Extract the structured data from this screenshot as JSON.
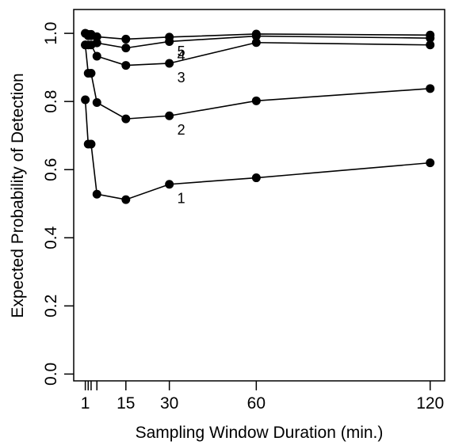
{
  "chart_data": {
    "type": "line",
    "title": "",
    "xlabel": "Sampling Window Duration (min.)",
    "ylabel": "Expected Probability of Detection",
    "xlim": [
      -3,
      125
    ],
    "ylim": [
      -0.02,
      1.07
    ],
    "x": [
      1,
      2,
      3,
      5,
      15,
      30,
      60,
      120
    ],
    "x_ticks": [
      1,
      2,
      3,
      5,
      15,
      30,
      60,
      120
    ],
    "x_tick_labels": [
      "1",
      "",
      "",
      "",
      "15",
      "30",
      "60",
      "120"
    ],
    "y_ticks": [
      0.0,
      0.2,
      0.4,
      0.6,
      0.8,
      1.0
    ],
    "y_tick_labels": [
      "0.0",
      "0.2",
      "0.4",
      "0.6",
      "0.8",
      "1.0"
    ],
    "grid": false,
    "legend": "none",
    "series": [
      {
        "name": "1",
        "values": [
          0.805,
          0.675,
          0.675,
          0.528,
          0.512,
          0.557,
          0.576,
          0.62
        ]
      },
      {
        "name": "2",
        "values": [
          0.966,
          0.883,
          0.883,
          0.797,
          0.749,
          0.758,
          0.802,
          0.838
        ]
      },
      {
        "name": "3",
        "values": [
          0.966,
          0.966,
          0.966,
          0.933,
          0.906,
          0.912,
          0.973,
          0.966
        ]
      },
      {
        "name": "4",
        "values": [
          1.0,
          0.993,
          0.993,
          0.972,
          0.957,
          0.976,
          0.992,
          0.986
        ]
      },
      {
        "name": "5",
        "values": [
          1.0,
          0.997,
          0.997,
          0.99,
          0.983,
          0.989,
          0.998,
          0.995
        ]
      }
    ],
    "series_color": "#000000"
  }
}
